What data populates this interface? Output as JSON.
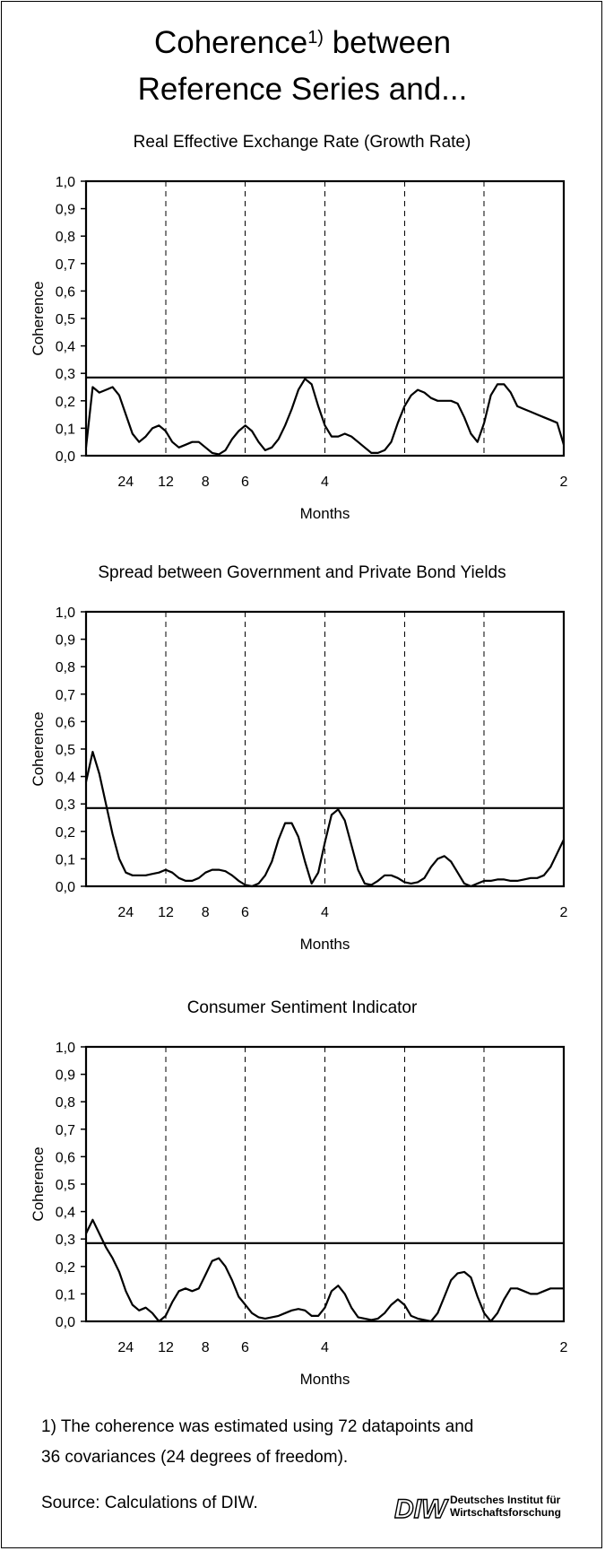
{
  "title": {
    "line1_main": "Coherence",
    "line1_sup": "1)",
    "line1_rest": " between",
    "line2": "Reference Series and..."
  },
  "footnotes": {
    "note1_line1": "1) The coherence was estimated using 72 datapoints and",
    "note1_line2": "36 covariances (24 degrees of freedom).",
    "source": "Source: Calculations of DIW."
  },
  "logo": {
    "mark": "DIW",
    "line1": "Deutsches Institut für",
    "line2": "Wirtschaftsforschung"
  },
  "chart_data": [
    {
      "type": "line",
      "title": "Real Effective Exchange Rate (Growth Rate)",
      "xlabel": "Months",
      "ylabel": "Coherence",
      "ylim": [
        0,
        1
      ],
      "yticks": [
        "1,0",
        "0,9",
        "0,8",
        "0,7",
        "0,6",
        "0,5",
        "0,4",
        "0,3",
        "0,2",
        "0,1",
        "0,0"
      ],
      "xtick_labels": [
        {
          "label": "24",
          "t": 0.083
        },
        {
          "label": "12",
          "t": 0.167
        },
        {
          "label": "8",
          "t": 0.25
        },
        {
          "label": "6",
          "t": 0.333
        },
        {
          "label": "4",
          "t": 0.5
        },
        {
          "label": "2",
          "t": 1.0
        }
      ],
      "dashed_x": [
        0.167,
        0.333,
        0.5,
        0.667,
        0.833
      ],
      "threshold": 0.285,
      "series": [
        {
          "values": [
            0.03,
            0.25,
            0.23,
            0.24,
            0.25,
            0.22,
            0.15,
            0.08,
            0.05,
            0.07,
            0.1,
            0.11,
            0.09,
            0.05,
            0.03,
            0.04,
            0.05,
            0.05,
            0.03,
            0.01,
            0.005,
            0.02,
            0.06,
            0.09,
            0.11,
            0.09,
            0.05,
            0.02,
            0.03,
            0.06,
            0.11,
            0.17,
            0.24,
            0.28,
            0.26,
            0.18,
            0.11,
            0.07,
            0.07,
            0.08,
            0.07,
            0.05,
            0.03,
            0.01,
            0.01,
            0.02,
            0.05,
            0.12,
            0.18,
            0.22,
            0.24,
            0.23,
            0.21,
            0.2,
            0.2,
            0.2,
            0.19,
            0.14,
            0.08,
            0.05,
            0.12,
            0.22,
            0.26,
            0.26,
            0.23,
            0.18,
            0.17,
            0.16,
            0.15,
            0.14,
            0.13,
            0.12,
            0.04
          ]
        }
      ]
    },
    {
      "type": "line",
      "title": "Spread between Government and Private Bond Yields",
      "xlabel": "Months",
      "ylabel": "Coherence",
      "ylim": [
        0,
        1
      ],
      "yticks": [
        "1,0",
        "0,9",
        "0,8",
        "0,7",
        "0,6",
        "0,5",
        "0,4",
        "0,3",
        "0,2",
        "0,1",
        "0,0"
      ],
      "xtick_labels": [
        {
          "label": "24",
          "t": 0.083
        },
        {
          "label": "12",
          "t": 0.167
        },
        {
          "label": "8",
          "t": 0.25
        },
        {
          "label": "6",
          "t": 0.333
        },
        {
          "label": "4",
          "t": 0.5
        },
        {
          "label": "2",
          "t": 1.0
        }
      ],
      "dashed_x": [
        0.167,
        0.333,
        0.5,
        0.667,
        0.833
      ],
      "threshold": 0.285,
      "series": [
        {
          "values": [
            0.38,
            0.49,
            0.41,
            0.3,
            0.19,
            0.1,
            0.05,
            0.04,
            0.04,
            0.04,
            0.045,
            0.05,
            0.06,
            0.05,
            0.03,
            0.02,
            0.02,
            0.03,
            0.05,
            0.06,
            0.06,
            0.055,
            0.04,
            0.02,
            0.005,
            0.0,
            0.01,
            0.04,
            0.09,
            0.17,
            0.23,
            0.23,
            0.18,
            0.09,
            0.01,
            0.05,
            0.16,
            0.26,
            0.28,
            0.24,
            0.15,
            0.06,
            0.01,
            0.005,
            0.02,
            0.04,
            0.04,
            0.03,
            0.015,
            0.01,
            0.015,
            0.03,
            0.07,
            0.1,
            0.11,
            0.09,
            0.05,
            0.01,
            0.0,
            0.01,
            0.02,
            0.02,
            0.025,
            0.025,
            0.02,
            0.02,
            0.025,
            0.03,
            0.03,
            0.04,
            0.07,
            0.12,
            0.17
          ]
        }
      ]
    },
    {
      "type": "line",
      "title": "Consumer Sentiment Indicator",
      "xlabel": "Months",
      "ylabel": "Coherence",
      "ylim": [
        0,
        1
      ],
      "yticks": [
        "1,0",
        "0,9",
        "0,8",
        "0,7",
        "0,6",
        "0,5",
        "0,4",
        "0,3",
        "0,2",
        "0,1",
        "0,0"
      ],
      "xtick_labels": [
        {
          "label": "24",
          "t": 0.083
        },
        {
          "label": "12",
          "t": 0.167
        },
        {
          "label": "8",
          "t": 0.25
        },
        {
          "label": "6",
          "t": 0.333
        },
        {
          "label": "4",
          "t": 0.5
        },
        {
          "label": "2",
          "t": 1.0
        }
      ],
      "dashed_x": [
        0.167,
        0.333,
        0.5,
        0.667,
        0.833
      ],
      "threshold": 0.285,
      "series": [
        {
          "values": [
            0.32,
            0.37,
            0.32,
            0.27,
            0.23,
            0.18,
            0.11,
            0.06,
            0.04,
            0.05,
            0.03,
            0.0,
            0.02,
            0.07,
            0.11,
            0.12,
            0.11,
            0.12,
            0.17,
            0.22,
            0.23,
            0.2,
            0.15,
            0.09,
            0.06,
            0.03,
            0.015,
            0.01,
            0.015,
            0.02,
            0.03,
            0.04,
            0.045,
            0.04,
            0.02,
            0.02,
            0.05,
            0.11,
            0.13,
            0.1,
            0.05,
            0.015,
            0.01,
            0.005,
            0.01,
            0.03,
            0.06,
            0.08,
            0.06,
            0.02,
            0.01,
            0.005,
            0.0,
            0.03,
            0.09,
            0.15,
            0.175,
            0.18,
            0.16,
            0.09,
            0.03,
            0.0,
            0.03,
            0.08,
            0.12,
            0.12,
            0.11,
            0.1,
            0.1,
            0.11,
            0.12,
            0.12,
            0.12
          ]
        }
      ]
    }
  ]
}
